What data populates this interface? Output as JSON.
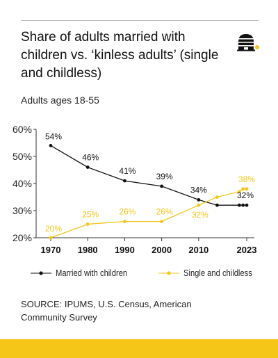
{
  "header": {
    "title": "Share of adults married with children vs. ‘kinless adults’ (single and childless)",
    "subtitle": "Adults ages 18-55"
  },
  "logo": {
    "icon": "beehive-icon",
    "dot_color": "#f5c518"
  },
  "footer": {
    "source": "SOURCE: IPUMS, U.S. Census, American Community Survey",
    "bar_color": "#f5c518"
  },
  "legend": {
    "married": "Married with children",
    "single": "Single and childless"
  },
  "chart_data": {
    "type": "line",
    "title": "",
    "xlabel": "",
    "ylabel": "",
    "ylim": [
      20,
      60
    ],
    "xlim": [
      1970,
      2023
    ],
    "yticks": [
      "60%",
      "50%",
      "40%",
      "30%",
      "20%"
    ],
    "ytick_values": [
      60,
      50,
      40,
      30,
      20
    ],
    "xticks": [
      "1970",
      "1980",
      "1990",
      "2000",
      "2010",
      "2023"
    ],
    "xtick_values": [
      1970,
      1980,
      1990,
      2000,
      2010,
      2023
    ],
    "grid": false,
    "legend_position": "bottom",
    "series": [
      {
        "name": "Married with children",
        "color": "#111111",
        "x": [
          1970,
          1980,
          1990,
          2000,
          2010,
          2015,
          2021,
          2022,
          2023
        ],
        "values": [
          54,
          46,
          41,
          39,
          34,
          32,
          32,
          32,
          32
        ],
        "labels": [
          {
            "x": 1970,
            "text": "54%"
          },
          {
            "x": 1980,
            "text": "46%"
          },
          {
            "x": 1990,
            "text": "41%"
          },
          {
            "x": 2000,
            "text": "39%"
          },
          {
            "x": 2010,
            "text": "34%"
          },
          {
            "x": 2023,
            "text": "32%"
          }
        ]
      },
      {
        "name": "Single and childless",
        "color": "#f5c518",
        "x": [
          1970,
          1980,
          1990,
          2000,
          2010,
          2015,
          2021,
          2022,
          2023
        ],
        "values": [
          20,
          25,
          26,
          26,
          32,
          35,
          37,
          38,
          38
        ],
        "labels": [
          {
            "x": 1970,
            "text": "20%"
          },
          {
            "x": 1980,
            "text": "25%"
          },
          {
            "x": 1990,
            "text": "26%"
          },
          {
            "x": 2000,
            "text": "26%"
          },
          {
            "x": 2010,
            "text": "32%"
          },
          {
            "x": 2023,
            "text": "38%"
          }
        ]
      }
    ]
  }
}
